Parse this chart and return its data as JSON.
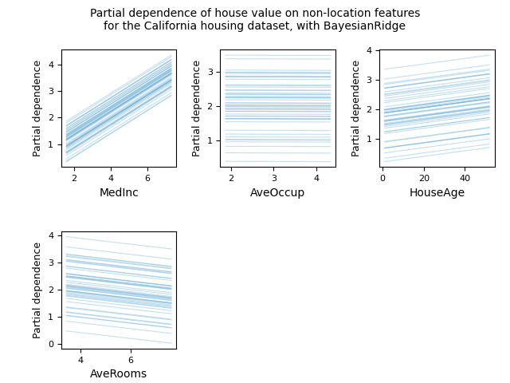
{
  "title": "Partial dependence of house value on non-location features\nfor the California housing dataset, with BayesianRidge",
  "features": [
    "MedInc",
    "AveOccup",
    "HouseAge",
    "AveRooms"
  ],
  "ylabel": "Partial dependence",
  "line_color": "#6baed6",
  "line_alpha": 0.4,
  "line_width": 0.8,
  "figsize": [
    6.4,
    4.8
  ],
  "dpi": 100,
  "title_fontsize": 10,
  "xlabel_fontsize": 10,
  "ylabel_fontsize": 9,
  "tick_labelsize": 8,
  "n_ice": 50,
  "percentiles": [
    0.05,
    0.95
  ],
  "grid_resolution": 100
}
